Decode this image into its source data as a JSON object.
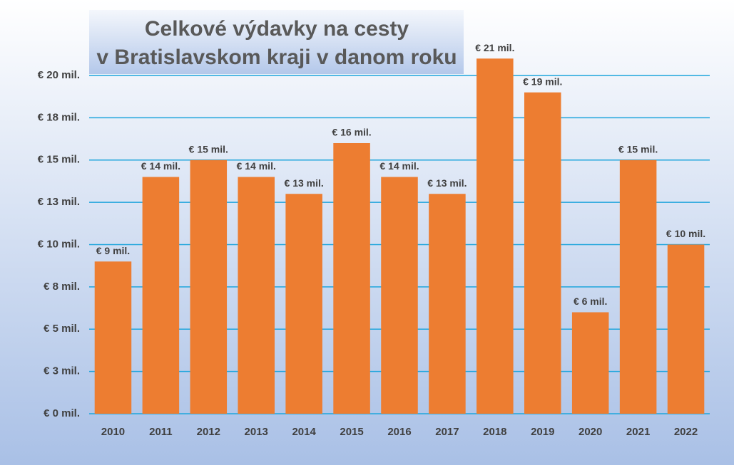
{
  "chart_data": {
    "type": "bar",
    "title": [
      "Celkové výdavky na cesty",
      "v Bratislavskom kraji v danom roku"
    ],
    "categories": [
      "2010",
      "2011",
      "2012",
      "2013",
      "2014",
      "2015",
      "2016",
      "2017",
      "2018",
      "2019",
      "2020",
      "2021",
      "2022"
    ],
    "values": [
      9,
      14,
      15,
      14,
      13,
      16,
      14,
      13,
      21,
      19,
      6,
      15,
      10
    ],
    "value_labels": [
      "€ 9 mil.",
      "€ 14 mil.",
      "€ 15 mil.",
      "€ 14 mil.",
      "€ 13 mil.",
      "€ 16 mil.",
      "€ 14 mil.",
      "€ 13 mil.",
      "€ 21 mil.",
      "€ 19 mil.",
      "€ 6 mil.",
      "€ 15 mil.",
      "€ 10 mil."
    ],
    "color": "#ed7d31",
    "ylim": [
      0,
      22
    ],
    "yticks": [
      {
        "value": 0,
        "label": "€ 0 mil."
      },
      {
        "value": 2.5,
        "label": "€ 3 mil."
      },
      {
        "value": 5,
        "label": "€ 5 mil."
      },
      {
        "value": 7.5,
        "label": "€ 8 mil."
      },
      {
        "value": 10,
        "label": "€ 10 mil."
      },
      {
        "value": 12.5,
        "label": "€ 13 mil."
      },
      {
        "value": 15,
        "label": "€ 15 mil."
      },
      {
        "value": 17.5,
        "label": "€ 18 mil."
      },
      {
        "value": 20,
        "label": "€ 20 mil."
      }
    ],
    "grid": true,
    "grid_color": "#1ea5dc"
  }
}
